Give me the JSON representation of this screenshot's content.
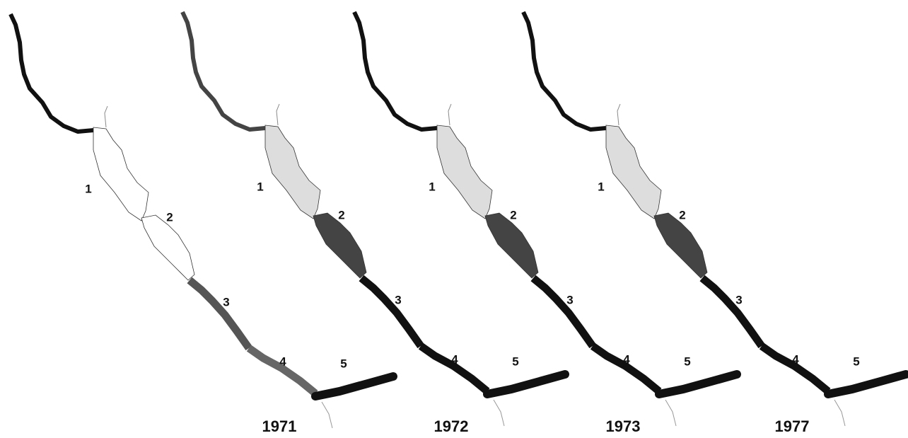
{
  "panels": [
    {
      "year": "1971",
      "zones": [
        "1",
        "2",
        "3",
        "4",
        "5"
      ]
    },
    {
      "year": "1972",
      "zones": [
        "1",
        "2",
        "3",
        "4",
        "5"
      ]
    },
    {
      "year": "1973",
      "zones": [
        "1",
        "2",
        "3",
        "4",
        "5"
      ]
    },
    {
      "year": "1977",
      "zones": [
        "1",
        "2",
        "3",
        "4",
        "5"
      ]
    }
  ]
}
